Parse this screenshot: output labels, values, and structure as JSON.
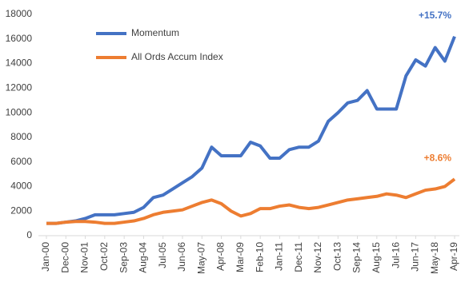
{
  "chart_data": {
    "type": "line",
    "categories": [
      "Jan-00",
      null,
      "Dec-00",
      null,
      "Nov-01",
      null,
      "Oct-02",
      null,
      "Sep-03",
      null,
      "Aug-04",
      null,
      "Jul-05",
      null,
      "Jun-06",
      null,
      "May-07",
      null,
      "Apr-08",
      null,
      "Mar-09",
      null,
      "Feb-10",
      null,
      "Jan-11",
      null,
      "Dec-11",
      null,
      "Nov-12",
      null,
      "Oct-13",
      null,
      "Sep-14",
      null,
      "Aug-15",
      null,
      "Jul-16",
      null,
      "Jun-17",
      null,
      "May-18",
      null,
      "Apr-19"
    ],
    "series": [
      {
        "name": "Momentum",
        "color": "#4472c4",
        "values": [
          1000,
          1000,
          1100,
          1200,
          1400,
          1700,
          1700,
          1700,
          1800,
          1900,
          2300,
          3100,
          3300,
          3800,
          4300,
          4800,
          5500,
          7200,
          6500,
          6500,
          6500,
          7600,
          7300,
          6300,
          6300,
          7000,
          7200,
          7200,
          7700,
          9300,
          10000,
          10800,
          11000,
          11800,
          10300,
          10300,
          10300,
          13000,
          14300,
          13800,
          15300,
          14200,
          16200
        ]
      },
      {
        "name": "All Ords Accum Index",
        "color": "#ed7d31",
        "values": [
          1000,
          1000,
          1100,
          1150,
          1150,
          1100,
          1000,
          1000,
          1100,
          1200,
          1400,
          1700,
          1900,
          2000,
          2100,
          2400,
          2700,
          2900,
          2600,
          2000,
          1600,
          1800,
          2200,
          2200,
          2400,
          2500,
          2300,
          2200,
          2300,
          2500,
          2700,
          2900,
          3000,
          3100,
          3200,
          3400,
          3300,
          3100,
          3400,
          3700,
          3800,
          4000,
          4600
        ]
      }
    ],
    "annotations": [
      "+15.7%",
      "+8.6%"
    ],
    "ylim": [
      0,
      18000
    ],
    "yticks": [
      0,
      2000,
      4000,
      6000,
      8000,
      10000,
      12000,
      14000,
      16000,
      18000
    ],
    "grid": false,
    "legend": "top-left"
  }
}
